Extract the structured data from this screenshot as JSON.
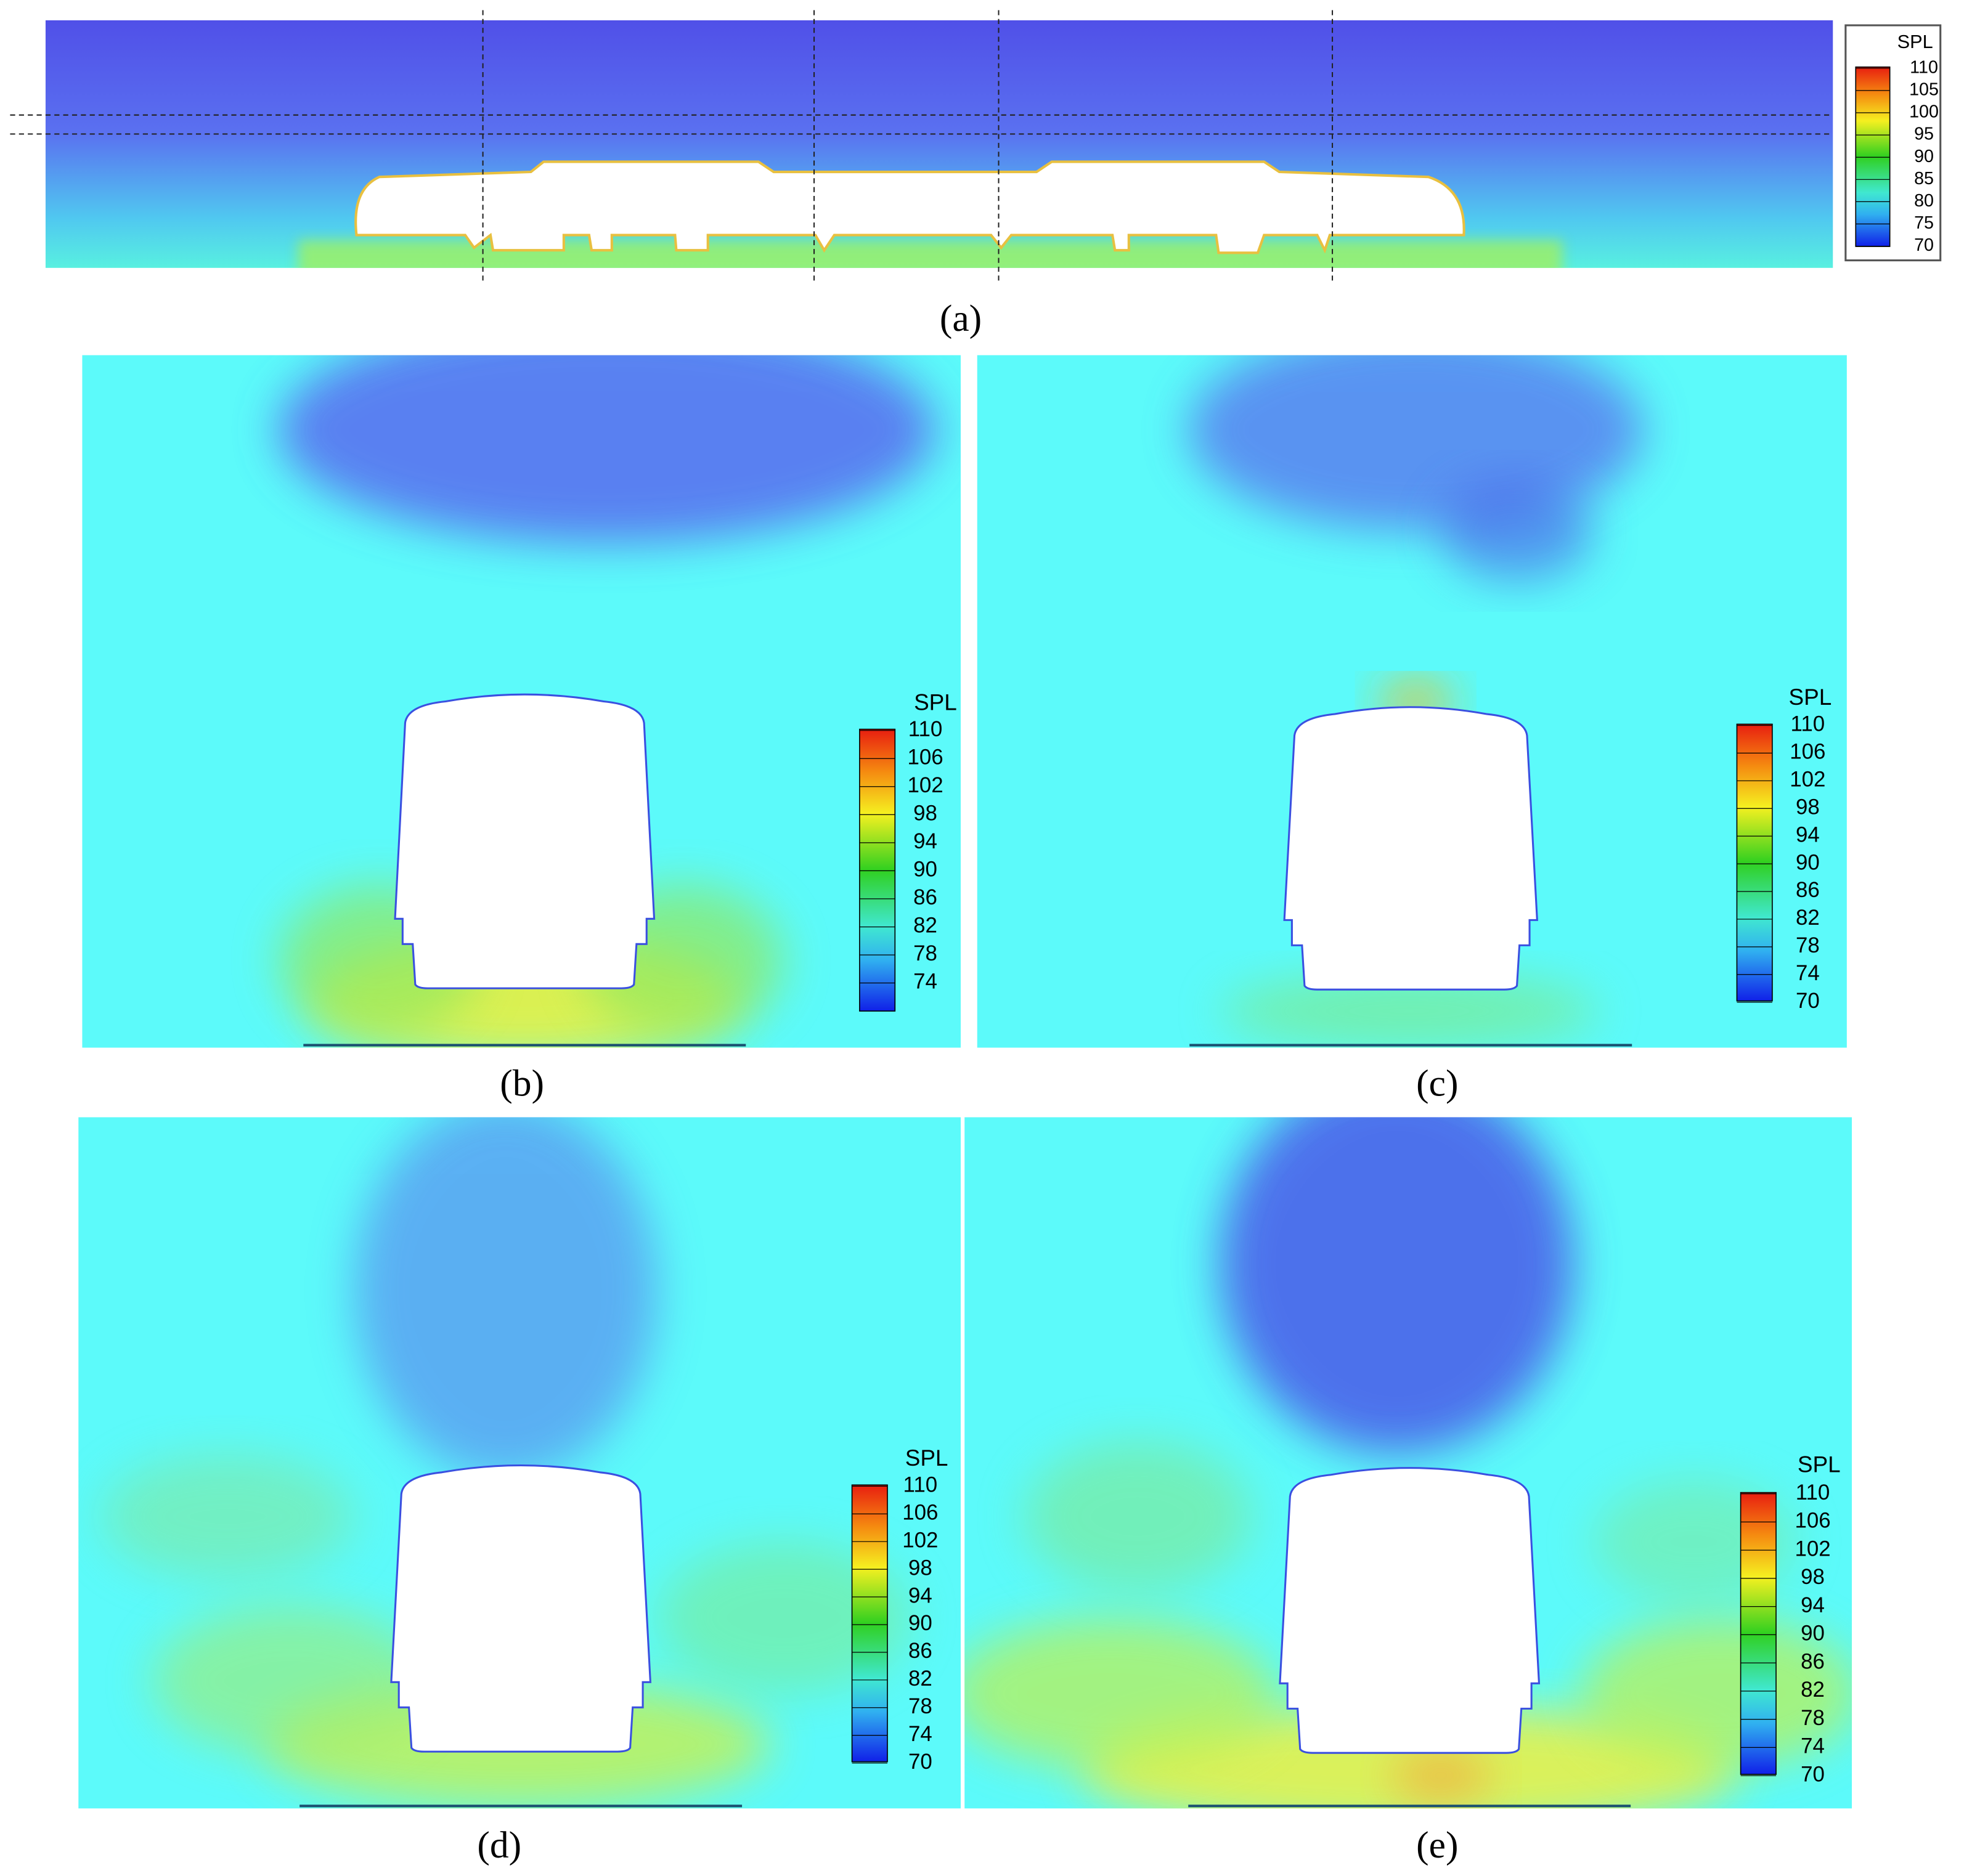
{
  "panels": [
    {
      "label": "(a)",
      "legend": {
        "title": "SPL",
        "ticks": [
          110,
          105,
          100,
          95,
          90,
          85,
          80,
          75,
          70
        ]
      }
    },
    {
      "label": "(b)",
      "legend": {
        "title": "SPL",
        "ticks": [
          110,
          106,
          102,
          98,
          94,
          90,
          86,
          82,
          78,
          74
        ]
      }
    },
    {
      "label": "(c)",
      "legend": {
        "title": "SPL",
        "ticks": [
          110,
          106,
          102,
          98,
          94,
          90,
          86,
          82,
          78,
          74,
          70
        ]
      }
    },
    {
      "label": "(d)",
      "legend": {
        "title": "SPL",
        "ticks": [
          110,
          106,
          102,
          98,
          94,
          90,
          86,
          82,
          78,
          74,
          70
        ]
      }
    },
    {
      "label": "(e)",
      "legend": {
        "title": "SPL",
        "ticks": [
          110,
          106,
          102,
          98,
          94,
          90,
          86,
          82,
          78,
          74,
          70
        ]
      }
    }
  ]
}
